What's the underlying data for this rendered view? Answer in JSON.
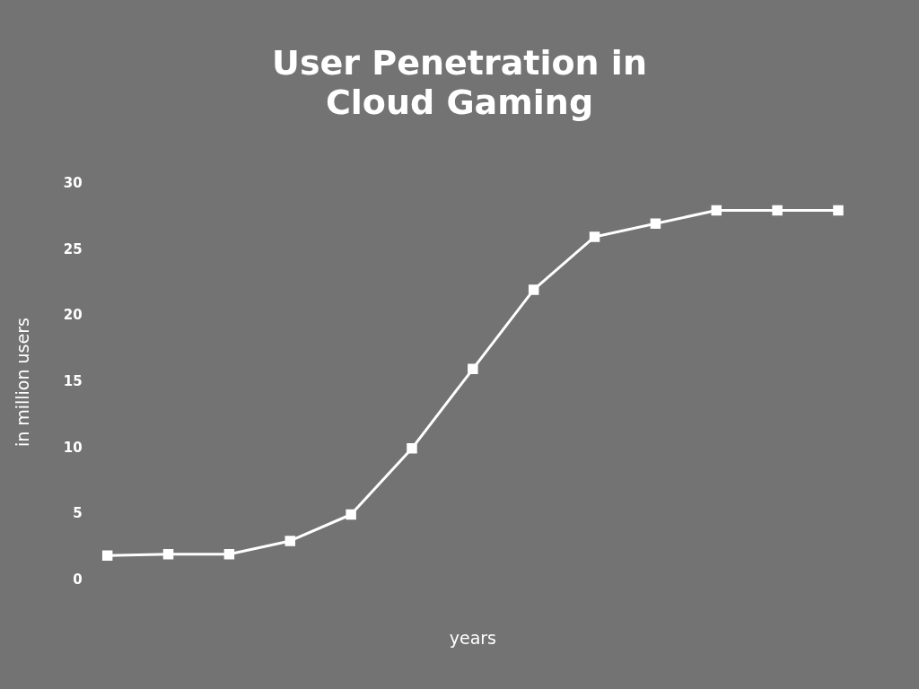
{
  "chart_data": {
    "type": "line",
    "title": "User Penetration in Cloud Gaming",
    "xlabel": "years",
    "ylabel": "in million users",
    "categories": [
      null,
      null,
      null,
      null,
      null,
      null,
      null,
      null,
      null,
      null,
      null,
      null,
      null
    ],
    "series": [
      {
        "color": "#ffffff",
        "values": [
          1.9,
          2,
          2,
          3,
          5,
          10,
          16,
          22,
          26,
          27,
          28,
          28,
          28
        ]
      }
    ],
    "ylim": [
      0,
      30
    ],
    "yticks": [
      0,
      5,
      10,
      15,
      20,
      25,
      30
    ],
    "grid": false,
    "legend": false,
    "marker": "square",
    "line_style": "solid"
  }
}
